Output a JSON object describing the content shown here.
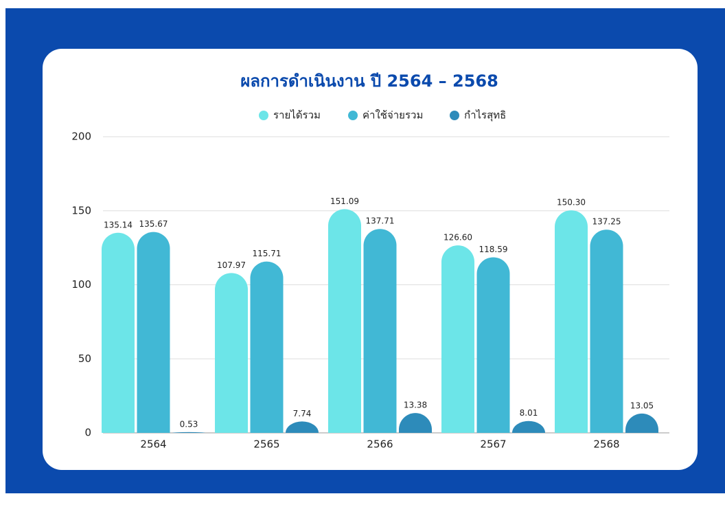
{
  "chart_data": {
    "type": "bar",
    "title": "ผลการดำเนินงาน ปี 2564 – 2568",
    "categories": [
      "2564",
      "2565",
      "2566",
      "2567",
      "2568"
    ],
    "series": [
      {
        "name": "รายได้รวม",
        "color": "#6ce5e8",
        "values": [
          135.14,
          107.97,
          151.09,
          126.6,
          150.3
        ],
        "value_labels": [
          "135.14",
          "107.97",
          "151.09",
          "126.60",
          "150.30"
        ]
      },
      {
        "name": "ค่าใช้จ่ายรวม",
        "color": "#41b8d5",
        "values": [
          135.67,
          115.71,
          137.71,
          118.59,
          137.25
        ],
        "value_labels": [
          "135.67",
          "115.71",
          "137.71",
          "118.59",
          "137.25"
        ]
      },
      {
        "name": "กำไรสุทธิ",
        "color": "#2d8bba",
        "values": [
          0.53,
          7.74,
          13.38,
          8.01,
          13.05
        ],
        "value_labels": [
          "0.53",
          "7.74",
          "13.38",
          "8.01",
          "13.05"
        ]
      }
    ],
    "ylim": [
      0,
      200
    ],
    "yticks": [
      0,
      50,
      100,
      150,
      200
    ],
    "grid": true,
    "legend": "top"
  }
}
